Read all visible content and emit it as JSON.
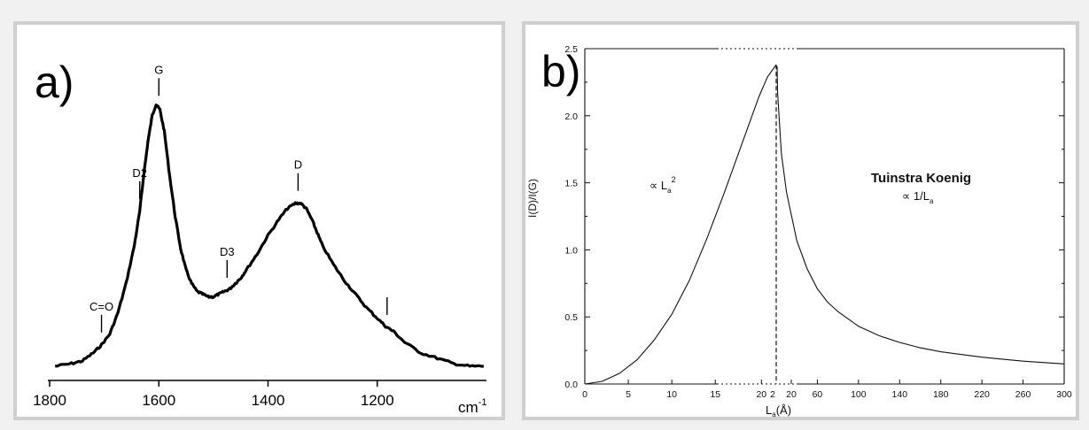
{
  "chart_data": [
    {
      "id": "a",
      "type": "line",
      "panel_label": "a)",
      "title": "",
      "xlabel": "",
      "ylabel": "",
      "x_unit": "cm",
      "x_unit_exp": "-1",
      "xlim": [
        1800,
        1000
      ],
      "x_ticks": [
        1800,
        1600,
        1400,
        1200
      ],
      "x_tick_labels": [
        "1800",
        "1600",
        "1400",
        "1200"
      ],
      "y_ticks_shown": false,
      "grid": false,
      "legend": "none",
      "peak_labels": [
        {
          "label": "C=O",
          "x": 1705
        },
        {
          "label": "D2",
          "x": 1635
        },
        {
          "label": "G",
          "x": 1600
        },
        {
          "label": "D3",
          "x": 1475
        },
        {
          "label": "D",
          "x": 1345
        },
        {
          "label": "I",
          "x": 1182
        }
      ],
      "series": [
        {
          "x": [
            1790,
            1760,
            1740,
            1720,
            1705,
            1690,
            1675,
            1660,
            1645,
            1635,
            1628,
            1620,
            1612,
            1605,
            1598,
            1590,
            1580,
            1570,
            1560,
            1550,
            1540,
            1530,
            1520,
            1510,
            1500,
            1490,
            1480,
            1470,
            1460,
            1450,
            1440,
            1420,
            1400,
            1380,
            1365,
            1350,
            1340,
            1330,
            1320,
            1310,
            1300,
            1280,
            1260,
            1240,
            1220,
            1200,
            1185,
            1170,
            1150,
            1120,
            1090,
            1060,
            1030,
            1005
          ],
          "y": [
            0.02,
            0.03,
            0.04,
            0.07,
            0.1,
            0.14,
            0.22,
            0.33,
            0.47,
            0.6,
            0.73,
            0.86,
            0.96,
            1.0,
            0.98,
            0.9,
            0.73,
            0.58,
            0.46,
            0.38,
            0.33,
            0.3,
            0.29,
            0.28,
            0.28,
            0.29,
            0.3,
            0.31,
            0.33,
            0.35,
            0.38,
            0.44,
            0.51,
            0.57,
            0.61,
            0.63,
            0.63,
            0.61,
            0.57,
            0.52,
            0.47,
            0.4,
            0.34,
            0.29,
            0.24,
            0.2,
            0.17,
            0.15,
            0.11,
            0.07,
            0.05,
            0.03,
            0.02,
            0.02
          ]
        }
      ]
    },
    {
      "id": "b",
      "type": "line",
      "panel_label": "b)",
      "title": "",
      "xlabel": "La(Å)",
      "xlabel_main": "L",
      "xlabel_sub": "a",
      "xlabel_rest": "(Å)",
      "ylabel": "I(D)/I(G)",
      "ylim": [
        0,
        2.5
      ],
      "y_ticks": [
        0.0,
        0.5,
        1.0,
        1.5,
        2.0,
        2.5
      ],
      "y_tick_labels": [
        "0.0",
        "0.5",
        "1.0",
        "1.5",
        "2.0",
        "2.5"
      ],
      "x_tick_labels": [
        "0",
        "5",
        "10",
        "15",
        "20",
        "2",
        "20",
        "60",
        "100",
        "140",
        "180",
        "220",
        "260",
        "300"
      ],
      "x_segments": [
        {
          "range": [
            0,
            22
          ],
          "note": "linear"
        },
        {
          "range": [
            20,
            300
          ],
          "note": "linear"
        }
      ],
      "peak_x": 22,
      "grid": false,
      "legend": "none",
      "annotations": {
        "name": "Tuinstra Koenig",
        "left_law": "∝ La²",
        "left_main": "∝ L",
        "left_sub": "a",
        "left_sup": "2",
        "right_law": "∝ 1/La",
        "right_main": "∝ 1/L",
        "right_sub": "a"
      },
      "series": [
        {
          "segment": "left",
          "x": [
            0,
            2,
            4,
            6,
            8,
            10,
            12,
            14,
            16,
            18,
            20,
            21,
            22
          ],
          "y": [
            0.0,
            0.02,
            0.08,
            0.18,
            0.33,
            0.52,
            0.77,
            1.08,
            1.42,
            1.78,
            2.14,
            2.29,
            2.38
          ]
        },
        {
          "segment": "right",
          "x": [
            20,
            25,
            30,
            40,
            50,
            60,
            70,
            80,
            100,
            120,
            140,
            160,
            180,
            220,
            260,
            300
          ],
          "y": [
            2.18,
            1.72,
            1.43,
            1.07,
            0.86,
            0.71,
            0.61,
            0.54,
            0.43,
            0.36,
            0.31,
            0.27,
            0.24,
            0.2,
            0.17,
            0.15
          ]
        }
      ]
    }
  ]
}
